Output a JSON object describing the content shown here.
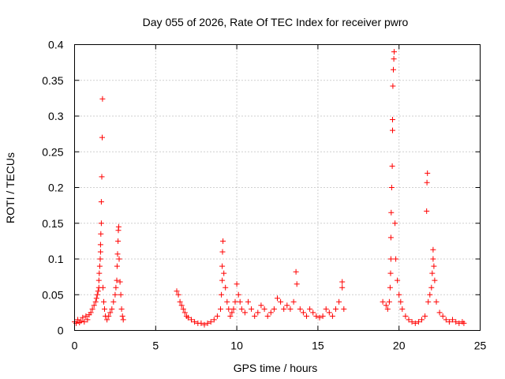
{
  "chart_data": {
    "type": "scatter",
    "title": "Day 055 of 2026, Rate Of TEC Index for receiver pwro",
    "xlabel": "GPS time / hours",
    "ylabel": "ROTI / TECUs",
    "xlim": [
      0,
      25
    ],
    "ylim": [
      0,
      0.4
    ],
    "x_ticks": [
      0,
      5,
      10,
      15,
      20,
      25
    ],
    "x_tick_labels": [
      "0",
      "5",
      "10",
      "15",
      "20",
      "25"
    ],
    "y_ticks": [
      0,
      0.05,
      0.1,
      0.15,
      0.2,
      0.25,
      0.3,
      0.35,
      0.4
    ],
    "y_tick_labels": [
      "0",
      "0.05",
      "0.1",
      "0.15",
      "0.2",
      "0.25",
      "0.3",
      "0.35",
      "0.4"
    ],
    "grid": true,
    "marker": "+",
    "marker_color": "#ff0000",
    "x": [
      0.0,
      0.1,
      0.2,
      0.3,
      0.4,
      0.5,
      0.6,
      0.7,
      0.8,
      0.9,
      1.0,
      1.1,
      1.2,
      1.3,
      1.35,
      1.4,
      1.45,
      1.5,
      1.5,
      1.52,
      1.55,
      1.58,
      1.6,
      1.6,
      1.62,
      1.65,
      1.65,
      1.68,
      1.7,
      1.72,
      1.75,
      1.8,
      1.85,
      1.9,
      2.0,
      2.1,
      2.2,
      2.3,
      2.4,
      2.5,
      2.55,
      2.6,
      2.62,
      2.65,
      2.68,
      2.7,
      2.72,
      2.75,
      2.8,
      2.85,
      2.9,
      2.95,
      3.0,
      6.3,
      6.4,
      6.5,
      6.6,
      6.7,
      6.8,
      6.9,
      7.0,
      7.2,
      7.4,
      7.6,
      7.8,
      8.0,
      8.2,
      8.4,
      8.6,
      8.8,
      9.0,
      9.05,
      9.1,
      9.1,
      9.12,
      9.15,
      9.2,
      9.3,
      9.4,
      9.5,
      9.6,
      9.7,
      9.8,
      9.9,
      10.0,
      10.1,
      10.2,
      10.3,
      10.5,
      10.7,
      10.9,
      11.1,
      11.3,
      11.5,
      11.7,
      11.9,
      12.1,
      12.3,
      12.5,
      12.7,
      12.9,
      13.1,
      13.3,
      13.5,
      13.65,
      13.7,
      13.9,
      14.1,
      14.3,
      14.5,
      14.7,
      14.9,
      15.1,
      15.3,
      15.5,
      15.7,
      15.9,
      16.1,
      16.3,
      16.5,
      16.5,
      16.6,
      19.0,
      19.2,
      19.3,
      19.4,
      19.45,
      19.48,
      19.5,
      19.5,
      19.52,
      19.55,
      19.58,
      19.6,
      19.6,
      19.62,
      19.65,
      19.68,
      19.7,
      19.75,
      19.8,
      19.9,
      20.0,
      20.1,
      20.2,
      20.4,
      20.6,
      20.8,
      21.0,
      21.2,
      21.4,
      21.6,
      21.7,
      21.72,
      21.75,
      21.8,
      21.9,
      22.0,
      22.05,
      22.1,
      22.1,
      22.15,
      22.2,
      22.3,
      22.5,
      22.7,
      22.9,
      23.1,
      23.3,
      23.5,
      23.7,
      23.9,
      24.0
    ],
    "y": [
      0.012,
      0.01,
      0.015,
      0.011,
      0.013,
      0.018,
      0.012,
      0.02,
      0.015,
      0.022,
      0.025,
      0.03,
      0.035,
      0.04,
      0.045,
      0.05,
      0.055,
      0.06,
      0.07,
      0.08,
      0.09,
      0.1,
      0.11,
      0.12,
      0.135,
      0.15,
      0.18,
      0.215,
      0.27,
      0.324,
      0.06,
      0.04,
      0.03,
      0.02,
      0.015,
      0.02,
      0.025,
      0.03,
      0.04,
      0.05,
      0.06,
      0.07,
      0.09,
      0.107,
      0.125,
      0.14,
      0.145,
      0.1,
      0.068,
      0.05,
      0.03,
      0.02,
      0.015,
      0.055,
      0.05,
      0.04,
      0.035,
      0.03,
      0.025,
      0.02,
      0.018,
      0.015,
      0.012,
      0.01,
      0.01,
      0.008,
      0.01,
      0.012,
      0.015,
      0.02,
      0.03,
      0.05,
      0.07,
      0.09,
      0.11,
      0.125,
      0.08,
      0.06,
      0.04,
      0.03,
      0.02,
      0.025,
      0.03,
      0.04,
      0.065,
      0.05,
      0.04,
      0.03,
      0.025,
      0.04,
      0.03,
      0.02,
      0.025,
      0.035,
      0.03,
      0.02,
      0.025,
      0.03,
      0.045,
      0.04,
      0.03,
      0.035,
      0.03,
      0.04,
      0.082,
      0.065,
      0.03,
      0.025,
      0.02,
      0.03,
      0.025,
      0.02,
      0.018,
      0.02,
      0.03,
      0.025,
      0.02,
      0.03,
      0.04,
      0.06,
      0.068,
      0.03,
      0.04,
      0.035,
      0.03,
      0.04,
      0.06,
      0.08,
      0.1,
      0.13,
      0.165,
      0.2,
      0.23,
      0.28,
      0.295,
      0.342,
      0.365,
      0.38,
      0.39,
      0.15,
      0.1,
      0.07,
      0.05,
      0.04,
      0.03,
      0.02,
      0.015,
      0.012,
      0.01,
      0.012,
      0.015,
      0.02,
      0.167,
      0.207,
      0.22,
      0.04,
      0.05,
      0.06,
      0.08,
      0.1,
      0.113,
      0.09,
      0.07,
      0.04,
      0.025,
      0.02,
      0.015,
      0.012,
      0.015,
      0.012,
      0.01,
      0.012,
      0.01
    ]
  }
}
